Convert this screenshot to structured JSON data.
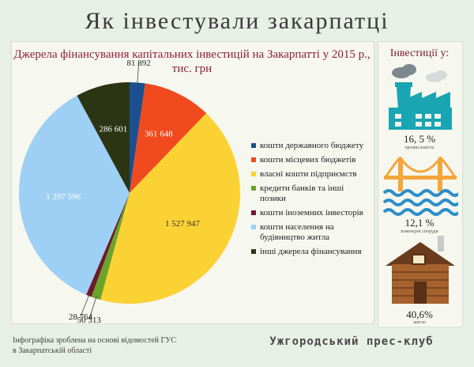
{
  "title": "Як інвестували закарпатці",
  "chart_title": "Джерела фінансування капітальних інвестицій на Закарпатті у 2015 р., тис. грн",
  "chart_data": {
    "type": "pie",
    "title": "Джерела фінансування капітальних інвестицій на Закарпатті у 2015 р., тис. грн",
    "slices": [
      {
        "label": "кошти державного бюджету",
        "value": 81892,
        "display": "81 892",
        "color": "#1b4f8f"
      },
      {
        "label": "кошти місцевих бюджетів",
        "value": 361648,
        "display": "361 648",
        "color": "#f04a1e"
      },
      {
        "label": "власні кошти підприємств",
        "value": 1527947,
        "display": "1 527 947",
        "color": "#fbd234"
      },
      {
        "label": "кредити банків та інші позики",
        "value": 50313,
        "display": "50 313",
        "color": "#6aa42a"
      },
      {
        "label": "кошти іноземних інвесторів",
        "value": 28764,
        "display": "28 764",
        "color": "#6e1a2a"
      },
      {
        "label": "кошти населення на будівництво житла",
        "value": 1297596,
        "display": "1 297 596",
        "color": "#9ecff4"
      },
      {
        "label": "інші джерела фінансування",
        "value": 286601,
        "display": "286 601",
        "color": "#2b3514"
      }
    ],
    "legend": "right"
  },
  "side_panel": {
    "title": "Інвестиції у:",
    "items": [
      {
        "value": "16, 5 %",
        "caption": "промисловість",
        "icon": "factory-icon"
      },
      {
        "value": "12,1 %",
        "caption": "інженерні споруди",
        "icon": "bridge-icon"
      },
      {
        "value": "40,6%",
        "caption": "житло",
        "icon": "house-icon"
      }
    ]
  },
  "footer": {
    "note_line1": "Інфографіка зроблена на основі відомостей ГУС",
    "note_line2": "в Закарпатській області",
    "brand": "Ужгородський прес-клуб"
  }
}
